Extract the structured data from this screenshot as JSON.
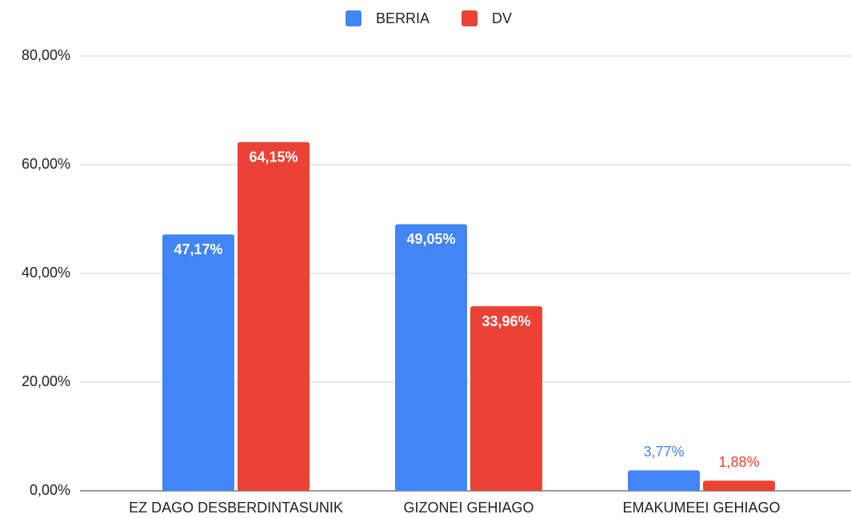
{
  "chart_data": {
    "type": "bar",
    "categories": [
      "EZ DAGO DESBERDINTASUNIK",
      "GIZONEI GEHIAGO",
      "EMAKUMEEI GEHIAGO"
    ],
    "series": [
      {
        "name": "BERRIA",
        "color": "#4285f4",
        "values": [
          47.17,
          49.05,
          3.77
        ],
        "value_labels": [
          "47,17%",
          "49,05%",
          "3,77%"
        ]
      },
      {
        "name": "DV",
        "color": "#ea4335",
        "values": [
          64.15,
          33.96,
          1.88
        ],
        "value_labels": [
          "64,15%",
          "33,96%",
          "1,88%"
        ]
      }
    ],
    "ylim": [
      0,
      80
    ],
    "yticks": [
      {
        "value": 0,
        "label": "0,00%"
      },
      {
        "value": 20,
        "label": "20,00%"
      },
      {
        "value": 40,
        "label": "40,00%"
      },
      {
        "value": 60,
        "label": "60,00%"
      },
      {
        "value": 80,
        "label": "80,00%"
      }
    ],
    "grid": true,
    "legend": "top"
  }
}
